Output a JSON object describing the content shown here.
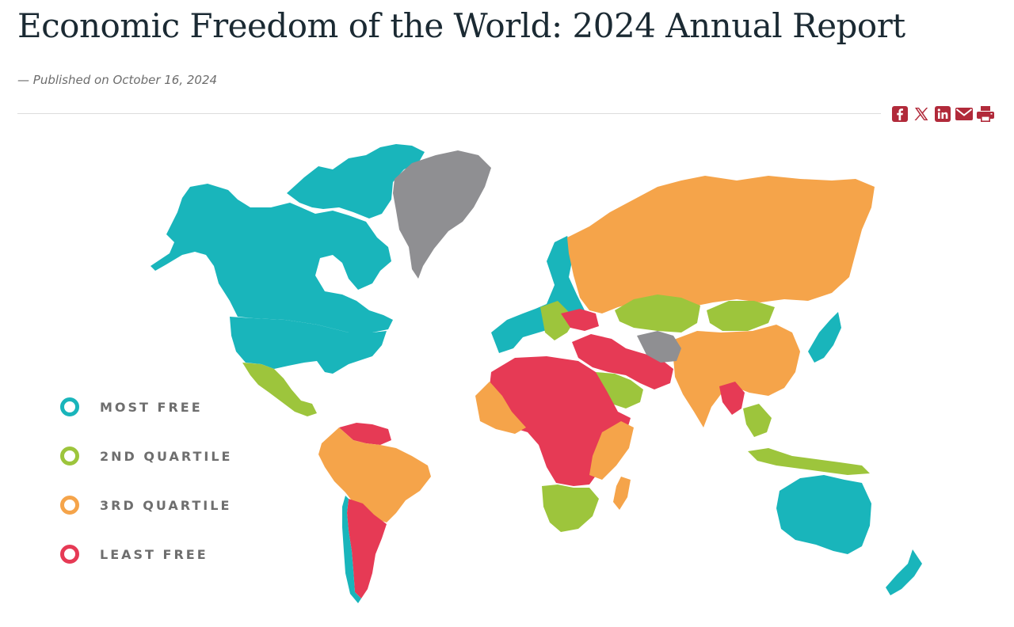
{
  "article": {
    "title": "Economic Freedom of the World: 2024 Annual Report",
    "byline": "— Published on October 16, 2024"
  },
  "share": {
    "icon_color": "#b12a3a",
    "icons": [
      "facebook-icon",
      "x-icon",
      "linkedin-icon",
      "email-icon",
      "print-icon"
    ]
  },
  "map": {
    "colors": {
      "most_free": "#19b5bb",
      "second_quartile": "#9dc53c",
      "third_quartile": "#f5a44a",
      "least_free": "#e63a55",
      "no_data": "#8f8f92"
    },
    "legend": [
      {
        "key": "most_free",
        "label": "MOST FREE",
        "color": "#19b5bb"
      },
      {
        "key": "second_quartile",
        "label": "2ND QUARTILE",
        "color": "#9dc53c"
      },
      {
        "key": "third_quartile",
        "label": "3RD QUARTILE",
        "color": "#f5a44a"
      },
      {
        "key": "least_free",
        "label": "LEAST FREE",
        "color": "#e63a55"
      }
    ]
  }
}
